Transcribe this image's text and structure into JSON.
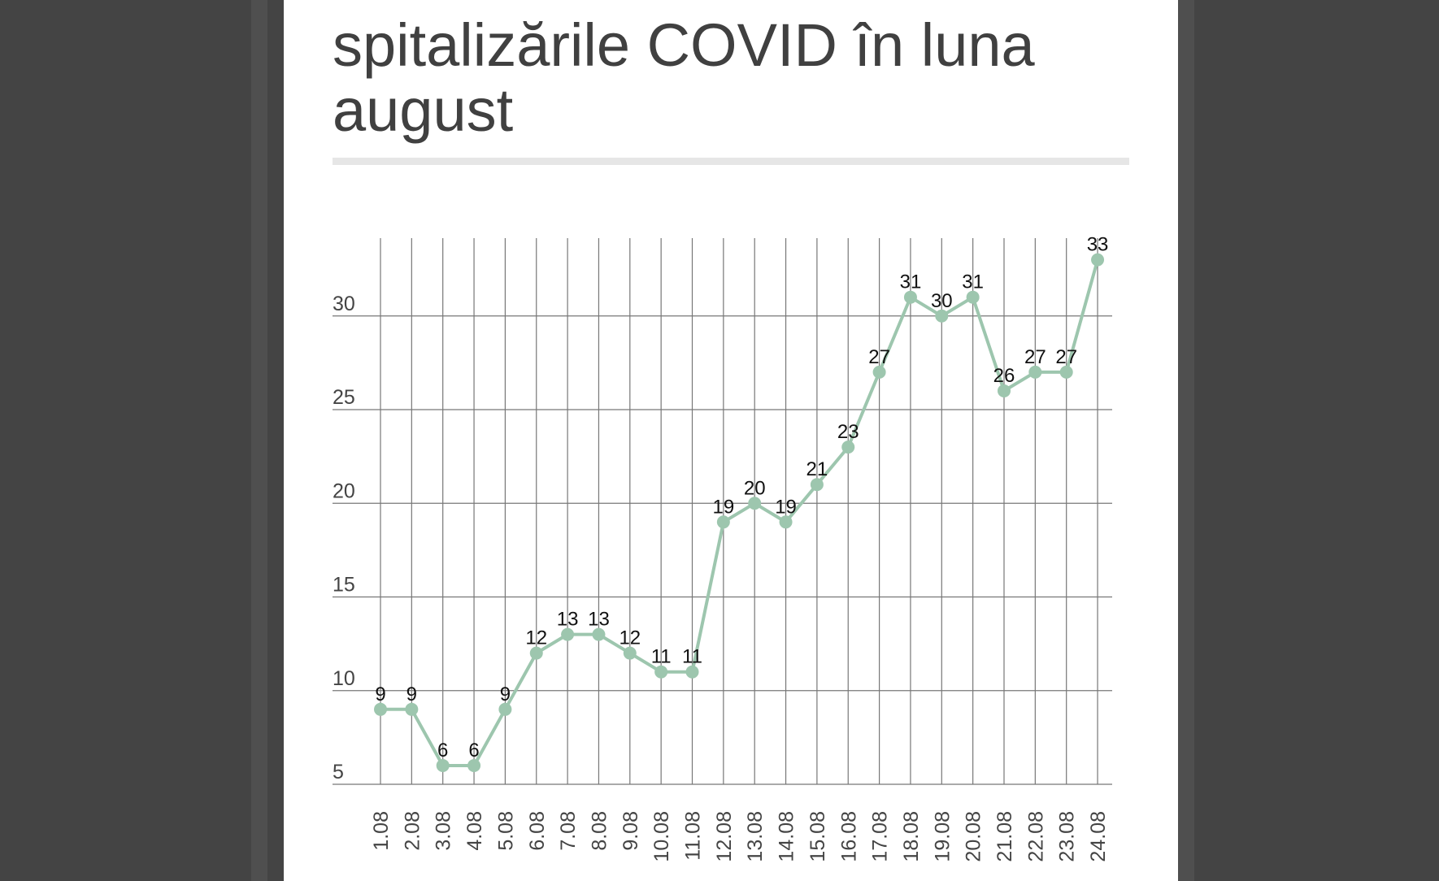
{
  "title": "spitalizările COVID în luna august",
  "colors": {
    "page_bg": "#444444",
    "card_bg": "#ffffff",
    "line": "#9dc6ae",
    "grid": "#777777",
    "title": "#404040"
  },
  "chart_data": {
    "type": "line",
    "title": "spitalizările COVID în luna august",
    "xlabel": "",
    "ylabel": "",
    "grid": true,
    "legend": "none",
    "data_labels": true,
    "ylim": [
      5,
      35
    ],
    "yticks": [
      5,
      10,
      15,
      20,
      25,
      30
    ],
    "categories": [
      "1.08",
      "2.08",
      "3.08",
      "4.08",
      "5.08",
      "6.08",
      "7.08",
      "8.08",
      "9.08",
      "10.08",
      "11.08",
      "12.08",
      "13.08",
      "14.08",
      "15.08",
      "16.08",
      "17.08",
      "18.08",
      "19.08",
      "20.08",
      "21.08",
      "22.08",
      "23.08",
      "24.08"
    ],
    "series": [
      {
        "values": [
          9,
          9,
          6,
          6,
          9,
          12,
          13,
          13,
          12,
          11,
          11,
          19,
          20,
          19,
          21,
          23,
          27,
          31,
          30,
          31,
          26,
          27,
          27,
          33
        ]
      }
    ]
  }
}
